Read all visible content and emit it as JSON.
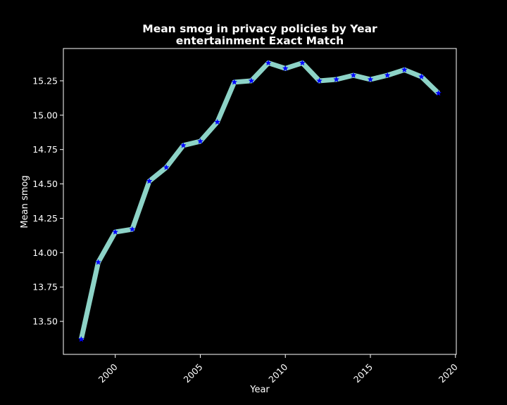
{
  "chart_data": {
    "type": "line",
    "title": "Mean smog in privacy policies by Year",
    "subtitle": "entertainment Exact Match",
    "xlabel": "Year",
    "ylabel": "Mean smog",
    "x": [
      1998,
      1999,
      2000,
      2001,
      2002,
      2003,
      2004,
      2005,
      2006,
      2007,
      2008,
      2009,
      2010,
      2011,
      2012,
      2013,
      2014,
      2015,
      2016,
      2017,
      2018,
      2019
    ],
    "series": [
      {
        "values": [
          13.37,
          13.93,
          14.15,
          14.17,
          14.52,
          14.62,
          14.78,
          14.81,
          14.95,
          15.24,
          15.25,
          15.38,
          15.34,
          15.38,
          15.25,
          15.26,
          15.29,
          15.26,
          15.29,
          15.33,
          15.28,
          15.16
        ],
        "line_color": "#8dd3c7",
        "marker_color": "#0000ff",
        "marker": "star"
      }
    ],
    "xlim": [
      1996.95,
      2020.05
    ],
    "ylim": [
      13.26,
      15.485
    ],
    "xticks": [
      "2000",
      "2005",
      "2010",
      "2015",
      "2020"
    ],
    "yticks": [
      "13.50",
      "13.75",
      "14.00",
      "14.25",
      "14.50",
      "14.75",
      "15.00",
      "15.25"
    ],
    "grid": false,
    "background": "#000000",
    "axes_color": "#ffffff"
  }
}
